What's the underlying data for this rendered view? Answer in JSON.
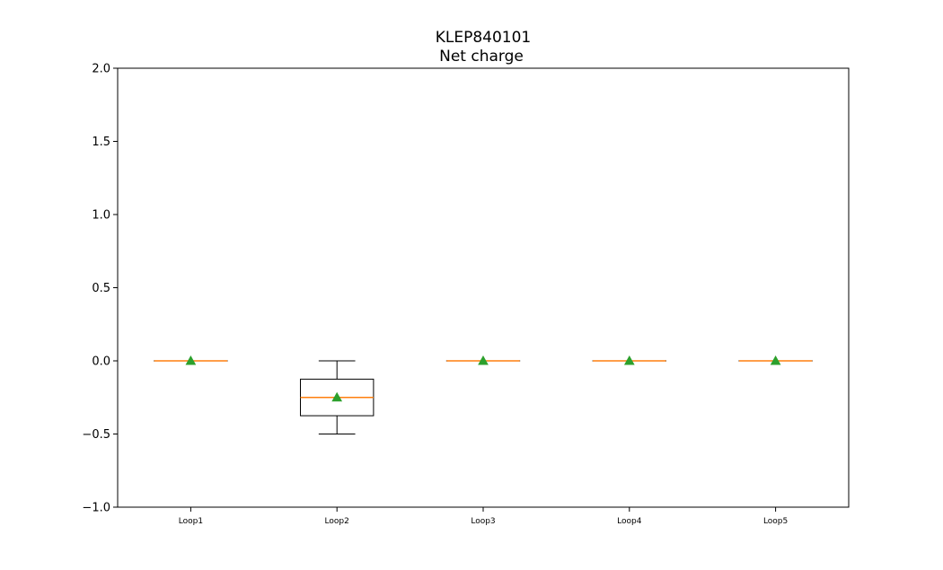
{
  "chart_data": {
    "type": "box",
    "title_lines": [
      "KLEP840101",
      "Net charge"
    ],
    "xlabel": "",
    "ylabel": "",
    "categories": [
      "Loop1",
      "Loop2",
      "Loop3",
      "Loop4",
      "Loop5"
    ],
    "ylim": [
      -1.0,
      2.0
    ],
    "yticks": [
      -1.0,
      -0.5,
      0.0,
      0.5,
      1.0,
      1.5,
      2.0
    ],
    "ytick_labels": [
      "−1.0",
      "−0.5",
      "0.0",
      "0.5",
      "1.0",
      "1.5",
      "2.0"
    ],
    "grid": false,
    "boxes": [
      {
        "category": "Loop1",
        "whislo": 0.0,
        "q1": 0.0,
        "med": 0.0,
        "q3": 0.0,
        "whishi": 0.0,
        "mean": 0.0
      },
      {
        "category": "Loop2",
        "whislo": -0.5,
        "q1": -0.375,
        "med": -0.25,
        "q3": -0.125,
        "whishi": 0.0,
        "mean": -0.25
      },
      {
        "category": "Loop3",
        "whislo": 0.0,
        "q1": 0.0,
        "med": 0.0,
        "q3": 0.0,
        "whishi": 0.0,
        "mean": 0.0
      },
      {
        "category": "Loop4",
        "whislo": 0.0,
        "q1": 0.0,
        "med": 0.0,
        "q3": 0.0,
        "whishi": 0.0,
        "mean": 0.0
      },
      {
        "category": "Loop5",
        "whislo": 0.0,
        "q1": 0.0,
        "med": 0.0,
        "q3": 0.0,
        "whishi": 0.0,
        "mean": 0.0
      }
    ],
    "colors": {
      "box": "#000000",
      "median": "#ff7f0e",
      "mean_marker": "#2ca02c",
      "axes": "#000000"
    }
  }
}
